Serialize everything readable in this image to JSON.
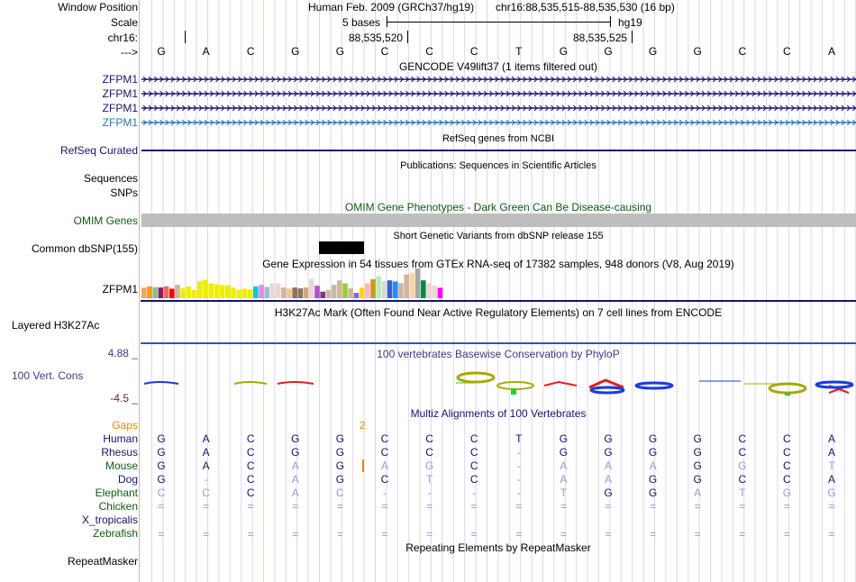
{
  "header": {
    "labels": {
      "window_position": "Window Position",
      "scale": "Scale",
      "chrom": "chr16:",
      "strand": "--->"
    },
    "assembly": "Human Feb. 2009 (GRCh37/hg19)",
    "position": "chr16:88,535,515-88,535,530 (16 bp)",
    "scale_text": "5 bases",
    "scale_db": "hg19",
    "ticks": [
      "88,535,520",
      "88,535,525"
    ],
    "bases": [
      "G",
      "A",
      "C",
      "G",
      "G",
      "C",
      "C",
      "C",
      "T",
      "G",
      "G",
      "G",
      "G",
      "C",
      "C",
      "A"
    ]
  },
  "tracks": {
    "gencode": {
      "title": "GENCODE V49lift37 (1 items filtered out)",
      "items": [
        {
          "label": "ZFPM1",
          "color": "#14146e"
        },
        {
          "label": "ZFPM1",
          "color": "#14146e"
        },
        {
          "label": "ZFPM1",
          "color": "#14146e"
        },
        {
          "label": "ZFPM1",
          "color": "#1f78b4"
        }
      ]
    },
    "refseq": {
      "title": "RefSeq genes from NCBI",
      "label": "RefSeq Curated"
    },
    "publications": {
      "title": "Publications: Sequences in Scientific Articles",
      "labels": [
        "Sequences",
        "SNPs"
      ]
    },
    "omim": {
      "title": "OMIM Gene Phenotypes - Dark Green Can Be Disease-causing",
      "label": "OMIM Genes"
    },
    "dbsnp": {
      "title": "Short Genetic Variants from dbSNP release 155",
      "label": "Common dbSNP(155)"
    },
    "gtex": {
      "title": "Gene Expression in 54 tissues from GTEx RNA-seq of 17382 samples, 948 donors (V8, Aug 2019)",
      "label": "ZFPM1",
      "bars": [
        {
          "v": 0.35,
          "c": "#f4a460"
        },
        {
          "v": 0.4,
          "c": "#f0a010"
        },
        {
          "v": 0.37,
          "c": "#8fbc8f"
        },
        {
          "v": 0.36,
          "c": "#8b1c62"
        },
        {
          "v": 0.4,
          "c": "#ee6a50"
        },
        {
          "v": 0.32,
          "c": "#ff0000"
        },
        {
          "v": 0.45,
          "c": "#cdb79e"
        },
        {
          "v": 0.33,
          "c": "#eeee00"
        },
        {
          "v": 0.4,
          "c": "#eeee00"
        },
        {
          "v": 0.28,
          "c": "#eeee00"
        },
        {
          "v": 0.58,
          "c": "#eeee00"
        },
        {
          "v": 0.62,
          "c": "#eeee00"
        },
        {
          "v": 0.5,
          "c": "#eeee00"
        },
        {
          "v": 0.47,
          "c": "#eeee00"
        },
        {
          "v": 0.44,
          "c": "#eeee00"
        },
        {
          "v": 0.44,
          "c": "#eeee00"
        },
        {
          "v": 0.36,
          "c": "#eeee00"
        },
        {
          "v": 0.28,
          "c": "#eeee00"
        },
        {
          "v": 0.32,
          "c": "#eeee00"
        },
        {
          "v": 0.3,
          "c": "#eeee00"
        },
        {
          "v": 0.4,
          "c": "#00cdcd"
        },
        {
          "v": 0.45,
          "c": "#ee82ee"
        },
        {
          "v": 0.38,
          "c": "#9ac0cd"
        },
        {
          "v": 0.5,
          "c": "#eed5d2"
        },
        {
          "v": 0.5,
          "c": "#eed5d2"
        },
        {
          "v": 0.36,
          "c": "#cdb79e"
        },
        {
          "v": 0.32,
          "c": "#eec591"
        },
        {
          "v": 0.36,
          "c": "#8b7355"
        },
        {
          "v": 0.33,
          "c": "#8b7355"
        },
        {
          "v": 0.36,
          "c": "#cdaa7d"
        },
        {
          "v": 0.65,
          "c": "#eed5d2"
        },
        {
          "v": 0.42,
          "c": "#b452cd"
        },
        {
          "v": 0.22,
          "c": "#7a378b"
        },
        {
          "v": 0.28,
          "c": "#cdb79e"
        },
        {
          "v": 0.45,
          "c": "#cdb79e"
        },
        {
          "v": 0.6,
          "c": "#cdb79e"
        },
        {
          "v": 0.5,
          "c": "#9acd32"
        },
        {
          "v": 0.33,
          "c": "#cdb79e"
        },
        {
          "v": 0.18,
          "c": "#7b68ee"
        },
        {
          "v": 0.35,
          "c": "#ffd700"
        },
        {
          "v": 0.5,
          "c": "#ffb6c1"
        },
        {
          "v": 0.64,
          "c": "#cd9b1d"
        },
        {
          "v": 0.74,
          "c": "#b4eeb4"
        },
        {
          "v": 0.58,
          "c": "#d9d9d9"
        },
        {
          "v": 0.6,
          "c": "#3a5fcd"
        },
        {
          "v": 0.56,
          "c": "#1e90ff"
        },
        {
          "v": 0.51,
          "c": "#cdb79e"
        },
        {
          "v": 0.8,
          "c": "#cdb79e"
        },
        {
          "v": 0.86,
          "c": "#ffd39b"
        },
        {
          "v": 1.0,
          "c": "#a6a6a6"
        },
        {
          "v": 0.6,
          "c": "#008b45"
        },
        {
          "v": 0.5,
          "c": "#eed5d2"
        },
        {
          "v": 0.43,
          "c": "#eed5d2"
        },
        {
          "v": 0.35,
          "c": "#ff00ff"
        }
      ]
    },
    "h3k27ac": {
      "title": "H3K27Ac Mark (Often Found Near Active Regulatory Elements) on 7 cell lines from ENCODE",
      "label": "Layered H3K27Ac"
    },
    "phylop": {
      "title": "100 vertebrates Basewise Conservation by PhyloP",
      "label": "100 Vert. Cons",
      "max_label": "4.88 _",
      "min_label": "-4.5 _",
      "range": [
        -4.5,
        4.88
      ]
    },
    "multiz": {
      "title": "Multiz Alignments of 100 Vertebrates",
      "gaps_label": "Gaps",
      "gap_count": "2",
      "species": [
        {
          "name": "Human",
          "color": "#14146e",
          "seq": [
            "G",
            "A",
            "C",
            "G",
            "G",
            "C",
            "C",
            "C",
            "T",
            "G",
            "G",
            "G",
            "G",
            "C",
            "C",
            "A"
          ],
          "dim": [
            0,
            0,
            0,
            0,
            0,
            0,
            0,
            0,
            0,
            0,
            0,
            0,
            0,
            0,
            0,
            0
          ]
        },
        {
          "name": "Rhesus",
          "color": "#14146e",
          "seq": [
            "G",
            "A",
            "C",
            "G",
            "G",
            "C",
            "C",
            "C",
            "-",
            "G",
            "G",
            "G",
            "G",
            "C",
            "C",
            "A"
          ],
          "dim": [
            0,
            0,
            0,
            0,
            0,
            0,
            0,
            0,
            1,
            0,
            0,
            0,
            0,
            0,
            0,
            0
          ]
        },
        {
          "name": "Mouse",
          "color": "#105a10",
          "seq": [
            "G",
            "A",
            "C",
            "A",
            "G",
            "A",
            "G",
            "C",
            "-",
            "A",
            "A",
            "A",
            "G",
            "G",
            "C",
            "T"
          ],
          "dim": [
            0,
            0,
            0,
            1,
            0,
            1,
            1,
            0,
            1,
            1,
            1,
            1,
            0,
            1,
            0,
            1
          ]
        },
        {
          "name": "Dog",
          "color": "#14146e",
          "seq": [
            "G",
            "-",
            "C",
            "A",
            "G",
            "C",
            "T",
            "C",
            "-",
            "A",
            "A",
            "G",
            "G",
            "C",
            "C",
            "A"
          ],
          "dim": [
            0,
            1,
            0,
            1,
            0,
            0,
            1,
            0,
            1,
            1,
            1,
            0,
            0,
            0,
            0,
            0
          ]
        },
        {
          "name": "Elephant",
          "color": "#105a10",
          "seq": [
            "C",
            "C",
            "C",
            "A",
            "C",
            "-",
            "-",
            "-",
            "-",
            "T",
            "G",
            "G",
            "A",
            "T",
            "G",
            "G"
          ],
          "dim": [
            1,
            1,
            0,
            1,
            1,
            1,
            1,
            1,
            1,
            1,
            0,
            0,
            1,
            1,
            1,
            1
          ]
        },
        {
          "name": "Chicken",
          "color": "#105a10",
          "seq": [
            "=",
            "=",
            "=",
            "=",
            "=",
            "=",
            "=",
            "=",
            "=",
            "=",
            "=",
            "=",
            "=",
            "=",
            "=",
            "="
          ],
          "dim": [
            1,
            1,
            1,
            1,
            1,
            1,
            1,
            1,
            1,
            1,
            1,
            1,
            1,
            1,
            1,
            1
          ]
        },
        {
          "name": "X_tropicalis",
          "color": "#14146e",
          "seq": [],
          "dim": []
        },
        {
          "name": "Zebrafish",
          "color": "#105a10",
          "seq": [
            "=",
            "=",
            "=",
            "=",
            "=",
            "=",
            "=",
            "=",
            "=",
            "=",
            "=",
            "=",
            "=",
            "=",
            "=",
            "="
          ],
          "dim": [
            1,
            1,
            1,
            1,
            1,
            1,
            1,
            1,
            1,
            1,
            1,
            1,
            1,
            1,
            1,
            1
          ]
        }
      ]
    },
    "repeatmasker": {
      "title": "Repeating Elements by RepeatMasker",
      "label": "RepeatMasker"
    }
  },
  "colors": {
    "navy": "#14146e",
    "green": "#105a10",
    "gap_orange": "#e08a00",
    "phylop_label": "#3c3c8c",
    "phylop_min": "#7a2020",
    "omim_bar": "#bebebe"
  }
}
